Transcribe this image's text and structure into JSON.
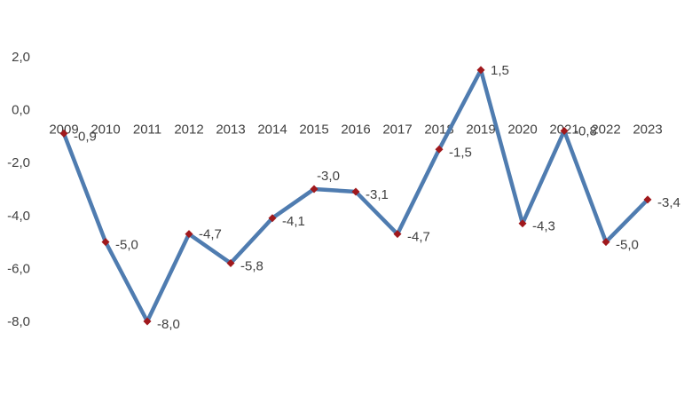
{
  "chart_data": {
    "type": "line",
    "title": "",
    "xlabel": "",
    "ylabel": "",
    "categories": [
      "2009",
      "2010",
      "2011",
      "2012",
      "2013",
      "2014",
      "2015",
      "2016",
      "2017",
      "2018",
      "2019",
      "2020",
      "2021",
      "2022",
      "2023"
    ],
    "series": [
      {
        "values": [
          -0.9,
          -5.0,
          -8.0,
          -4.7,
          -5.8,
          -4.1,
          -3.0,
          -3.1,
          -4.7,
          -1.5,
          1.5,
          -4.3,
          -0.8,
          -5.0,
          -3.4
        ],
        "data_labels": [
          "-0,9",
          "-5,0",
          "-8,0",
          "-4,7",
          "-5,8",
          "-4,1",
          "-3,0",
          "-3,1",
          "-4,7",
          "-1,5",
          "1,5",
          "-4,3",
          "-0,8",
          "-5,0",
          "-3,4"
        ],
        "line_color": "#4f7cb0",
        "marker_color": "#a0181c",
        "marker": "diamond"
      }
    ],
    "ylim": [
      -8.0,
      2.0
    ],
    "yticks": [
      2.0,
      0.0,
      -2.0,
      -4.0,
      -6.0,
      -8.0
    ],
    "ytick_labels": [
      "2,0",
      "0,0",
      "-2,0",
      "-4,0",
      "-6,0",
      "-8,0"
    ],
    "grid": false,
    "legend": "none"
  }
}
